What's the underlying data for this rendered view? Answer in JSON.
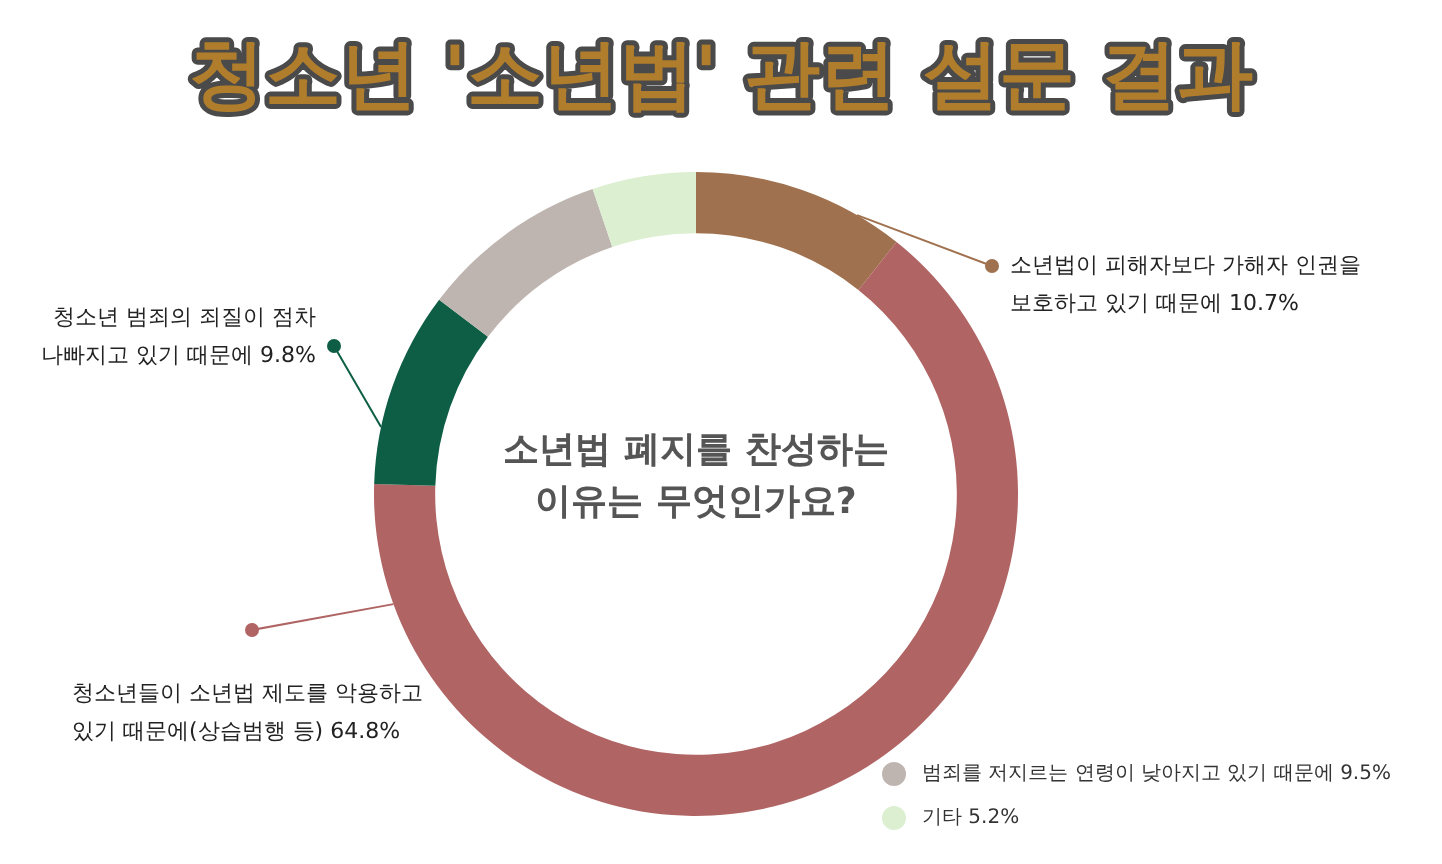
{
  "chart_data": {
    "type": "donut",
    "title": "청소년 '소년법' 관련 설문 결과",
    "categories": [
      "소년법이 피해자보다 가해자 인권을 보호하고 있기 때문에",
      "청소년들이 소년법 제도를 악용하고 있기 때문에(상습범행 등)",
      "청소년 범죄의 죄질이 점차 나빠지고 있기 때문에",
      "범죄를 저지르는 연령이 낮아지고 있기 때문에",
      "기타"
    ],
    "values": [
      10.7,
      64.8,
      9.8,
      9.5,
      5.2
    ],
    "value_labels": [
      "10.7%",
      "64.8%",
      "9.8%",
      "9.5%",
      "5.2%"
    ],
    "colors": [
      "#a0714f",
      "#b06464",
      "#0d5e45",
      "#bfb5b0",
      "#dcefd0"
    ],
    "annotations": [
      "소년법 폐지를 찬성하는 이유는 무엇인가요?"
    ],
    "legend": "bottom right"
  }
}
